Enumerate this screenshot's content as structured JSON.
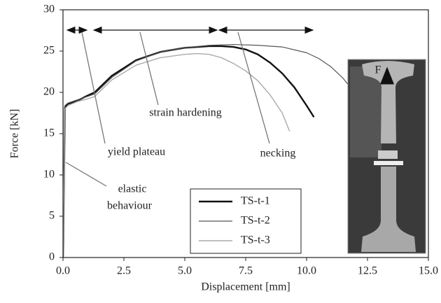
{
  "chart_data": {
    "type": "line",
    "xlabel": "Displacement [mm]",
    "ylabel": "Force [kN]",
    "xlim": [
      0,
      15
    ],
    "ylim": [
      0,
      30
    ],
    "xticks": [
      {
        "value": 0,
        "label": "0.0"
      },
      2.5,
      {
        "value": 5,
        "label": "5.0"
      },
      7.5,
      {
        "value": 10,
        "label": "10.0"
      },
      12.5,
      {
        "value": 15,
        "label": "15.0"
      }
    ],
    "yticks": [
      0,
      5,
      10,
      15,
      20,
      25,
      30
    ],
    "series": [
      {
        "name": "TS-t-1",
        "color": "#111111",
        "width": 2.4,
        "x": [
          0,
          0.08,
          0.2,
          0.6,
          1.0,
          1.3,
          2,
          3,
          4,
          5,
          6,
          6.5,
          7,
          7.5,
          8,
          8.5,
          9,
          9.5,
          10,
          10.3
        ],
        "values": [
          0,
          18.2,
          18.6,
          19.0,
          19.6,
          20.0,
          22.0,
          23.9,
          24.9,
          25.4,
          25.6,
          25.6,
          25.5,
          25.2,
          24.6,
          23.6,
          22.3,
          20.6,
          18.4,
          17.0
        ]
      },
      {
        "name": "TS-t-2",
        "color": "#555555",
        "width": 1.2,
        "x": [
          0,
          0.08,
          0.2,
          0.6,
          1.0,
          1.3,
          2,
          3,
          4,
          5,
          6,
          7,
          8,
          9,
          10,
          10.5,
          11,
          11.5,
          11.8
        ],
        "values": [
          0,
          18.4,
          18.7,
          19.1,
          19.5,
          19.8,
          21.8,
          23.8,
          24.9,
          25.4,
          25.7,
          25.8,
          25.7,
          25.5,
          24.8,
          24.1,
          23.1,
          21.7,
          20.6
        ]
      },
      {
        "name": "TS-t-3",
        "color": "#aaaaaa",
        "width": 1.4,
        "x": [
          0,
          0.08,
          0.2,
          0.6,
          1.0,
          1.3,
          2,
          3,
          4,
          5,
          5.5,
          6,
          6.5,
          7,
          7.5,
          8,
          8.5,
          9,
          9.3
        ],
        "values": [
          0,
          18.0,
          18.4,
          18.9,
          19.2,
          19.5,
          21.5,
          23.3,
          24.2,
          24.6,
          24.7,
          24.6,
          24.2,
          23.5,
          22.6,
          21.4,
          19.7,
          17.5,
          15.3
        ]
      }
    ],
    "annotations": [
      "strain hardening",
      "yield plateau",
      "necking",
      "elastic",
      "behaviour",
      "F"
    ]
  }
}
